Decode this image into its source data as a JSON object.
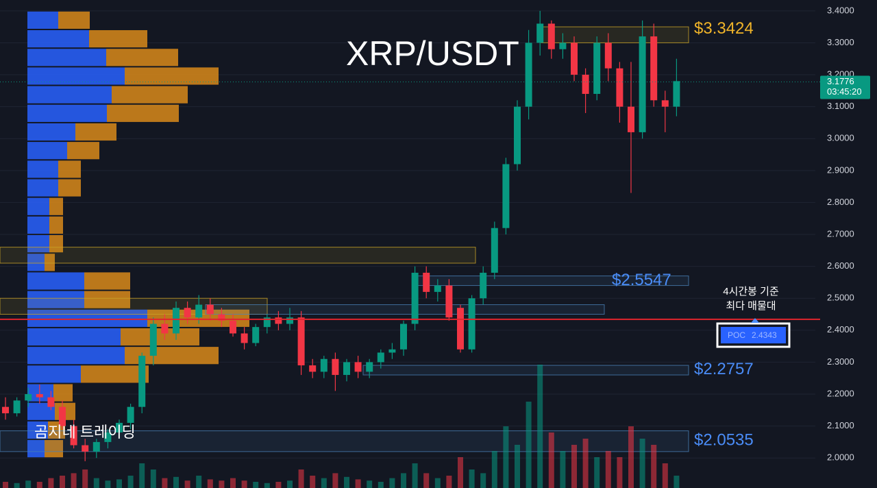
{
  "chart_data": {
    "type": "candlestick",
    "title": "XRP/USDT",
    "watermark": "곰지네 트레이딩",
    "ylim": [
      1.906,
      3.434
    ],
    "yticks": [
      {
        "value": 3.4,
        "label": "3.4000"
      },
      {
        "value": 3.3,
        "label": "3.3000"
      },
      {
        "value": 3.2,
        "label": "3.2000"
      },
      {
        "value": 3.1,
        "label": "3.1000"
      },
      {
        "value": 3.0,
        "label": "3.0000"
      },
      {
        "value": 2.9,
        "label": "2.9000"
      },
      {
        "value": 2.8,
        "label": "2.8000"
      },
      {
        "value": 2.7,
        "label": "2.7000"
      },
      {
        "value": 2.6,
        "label": "2.6000"
      },
      {
        "value": 2.5,
        "label": "2.5000"
      },
      {
        "value": 2.4,
        "label": "2.4000"
      },
      {
        "value": 2.3,
        "label": "2.3000"
      },
      {
        "value": 2.2,
        "label": "2.2000"
      },
      {
        "value": 2.1,
        "label": "2.1000"
      },
      {
        "value": 2.0,
        "label": "2.0000"
      }
    ],
    "grid": true,
    "up_color": "#089981",
    "down_color": "#f23645",
    "open": [
      2.16,
      2.14,
      2.18,
      2.2,
      2.19,
      2.16,
      2.1,
      2.04,
      2.02,
      2.05,
      2.08,
      2.11,
      2.16,
      2.32,
      2.42,
      2.39,
      2.47,
      2.44,
      2.48,
      2.45,
      2.43,
      2.39,
      2.36,
      2.41,
      2.44,
      2.42,
      2.44,
      2.29,
      2.27,
      2.31,
      2.26,
      2.3,
      2.27,
      2.3,
      2.33,
      2.34,
      2.42,
      2.58,
      2.52,
      2.54,
      2.47,
      2.34,
      2.5,
      2.58,
      2.72,
      2.92,
      3.1,
      3.3,
      3.36,
      3.28,
      3.3,
      3.2,
      3.14,
      3.3,
      3.22,
      3.1,
      3.02,
      3.32,
      3.12,
      3.1
    ],
    "high": [
      2.19,
      2.19,
      2.22,
      2.23,
      2.21,
      2.18,
      2.12,
      2.06,
      2.06,
      2.09,
      2.12,
      2.17,
      2.33,
      2.44,
      2.45,
      2.49,
      2.49,
      2.51,
      2.5,
      2.47,
      2.45,
      2.41,
      2.42,
      2.45,
      2.46,
      2.47,
      2.46,
      2.31,
      2.32,
      2.33,
      2.31,
      2.32,
      2.31,
      2.34,
      2.36,
      2.43,
      2.6,
      2.6,
      2.56,
      2.56,
      2.48,
      2.51,
      2.6,
      2.74,
      2.94,
      3.12,
      3.34,
      3.4,
      3.37,
      3.33,
      3.32,
      3.22,
      3.32,
      3.33,
      3.24,
      3.24,
      3.37,
      3.36,
      3.15,
      3.25
    ],
    "low": [
      2.12,
      2.13,
      2.16,
      2.17,
      2.15,
      2.09,
      2.03,
      1.99,
      2.0,
      2.03,
      2.06,
      2.09,
      2.14,
      2.29,
      2.37,
      2.37,
      2.42,
      2.42,
      2.43,
      2.41,
      2.38,
      2.34,
      2.35,
      2.39,
      2.4,
      2.4,
      2.26,
      2.25,
      2.25,
      2.21,
      2.24,
      2.25,
      2.25,
      2.28,
      2.31,
      2.32,
      2.4,
      2.5,
      2.49,
      2.43,
      2.33,
      2.33,
      2.48,
      2.56,
      2.7,
      2.9,
      3.06,
      3.26,
      3.25,
      3.25,
      3.18,
      3.08,
      3.12,
      3.18,
      3.05,
      2.83,
      3.0,
      3.1,
      3.02,
      3.07
    ],
    "close": [
      2.14,
      2.18,
      2.2,
      2.19,
      2.16,
      2.1,
      2.04,
      2.02,
      2.05,
      2.08,
      2.11,
      2.16,
      2.32,
      2.42,
      2.39,
      2.47,
      2.44,
      2.48,
      2.45,
      2.43,
      2.39,
      2.36,
      2.41,
      2.44,
      2.42,
      2.44,
      2.29,
      2.27,
      2.31,
      2.26,
      2.3,
      2.27,
      2.3,
      2.33,
      2.34,
      2.42,
      2.58,
      2.52,
      2.54,
      2.44,
      2.34,
      2.5,
      2.58,
      2.72,
      2.92,
      3.1,
      3.3,
      3.36,
      3.28,
      3.3,
      3.2,
      3.14,
      3.3,
      3.22,
      3.1,
      3.02,
      3.32,
      3.12,
      3.1,
      3.18
    ],
    "volume": [
      5,
      4,
      6,
      5,
      8,
      10,
      12,
      15,
      8,
      6,
      7,
      10,
      20,
      15,
      8,
      9,
      6,
      10,
      7,
      6,
      8,
      6,
      5,
      4,
      5,
      6,
      15,
      10,
      8,
      12,
      9,
      7,
      6,
      5,
      8,
      12,
      20,
      12,
      8,
      10,
      25,
      15,
      12,
      30,
      50,
      35,
      70,
      100,
      45,
      30,
      35,
      40,
      25,
      30,
      25,
      50,
      40,
      35,
      20,
      10
    ],
    "volume_lim": [
      0,
      100
    ],
    "volume_profile": {
      "bins": [
        2.0,
        2.0583,
        2.1167,
        2.175,
        2.2333,
        2.2917,
        2.35,
        2.4083,
        2.4667,
        2.525,
        2.5833,
        2.6417,
        2.7,
        2.7583,
        2.8167,
        2.875,
        2.9333,
        2.9917,
        3.05,
        3.1083,
        3.1667,
        3.225,
        3.2833,
        3.3417,
        3.4
      ],
      "up": [
        25,
        30,
        40,
        38,
        78,
        142,
        136,
        175,
        83,
        83,
        25,
        32,
        32,
        32,
        45,
        45,
        58,
        70,
        116,
        123,
        142,
        115,
        90,
        45
      ],
      "down": [
        27,
        25,
        30,
        28,
        99,
        137,
        115,
        149,
        67,
        67,
        15,
        20,
        20,
        20,
        33,
        33,
        47,
        60,
        105,
        111,
        137,
        105,
        85,
        46
      ],
      "lim": [
        0,
        300
      ],
      "up_color": "#2962ff",
      "down_color": "#d98a1a"
    },
    "zones": [
      {
        "low": 3.3,
        "high": 3.35,
        "color": "#c9a227"
      },
      {
        "low": 2.61,
        "high": 2.66,
        "color": "#c9a227"
      },
      {
        "low": 2.45,
        "high": 2.5,
        "color": "#c9a227"
      },
      {
        "low": 2.45,
        "high": 2.48,
        "color": "#4a7fb5"
      },
      {
        "low": 2.54,
        "high": 2.57,
        "color": "#4a7fb5"
      },
      {
        "low": 2.26,
        "high": 2.29,
        "color": "#4a7fb5"
      },
      {
        "low": 2.02,
        "high": 2.085,
        "color": "#4a7fb5"
      }
    ],
    "levels": [
      {
        "value": 3.3424,
        "label": "$3.3424",
        "color": "#f0b429"
      },
      {
        "value": 2.5547,
        "label": "$2.5547",
        "color": "#4a8cf7"
      },
      {
        "value": 2.2757,
        "label": "$2.2757",
        "color": "#4a8cf7"
      },
      {
        "value": 2.0535,
        "label": "$2.0535",
        "color": "#4a8cf7"
      }
    ],
    "poc": {
      "name": "POC",
      "value": 2.4343,
      "color": "#e0252d"
    },
    "annotation": [
      "4시간봉 기준",
      "최다 매물대"
    ],
    "last_price": 3.1776,
    "countdown": "03:45:20"
  }
}
